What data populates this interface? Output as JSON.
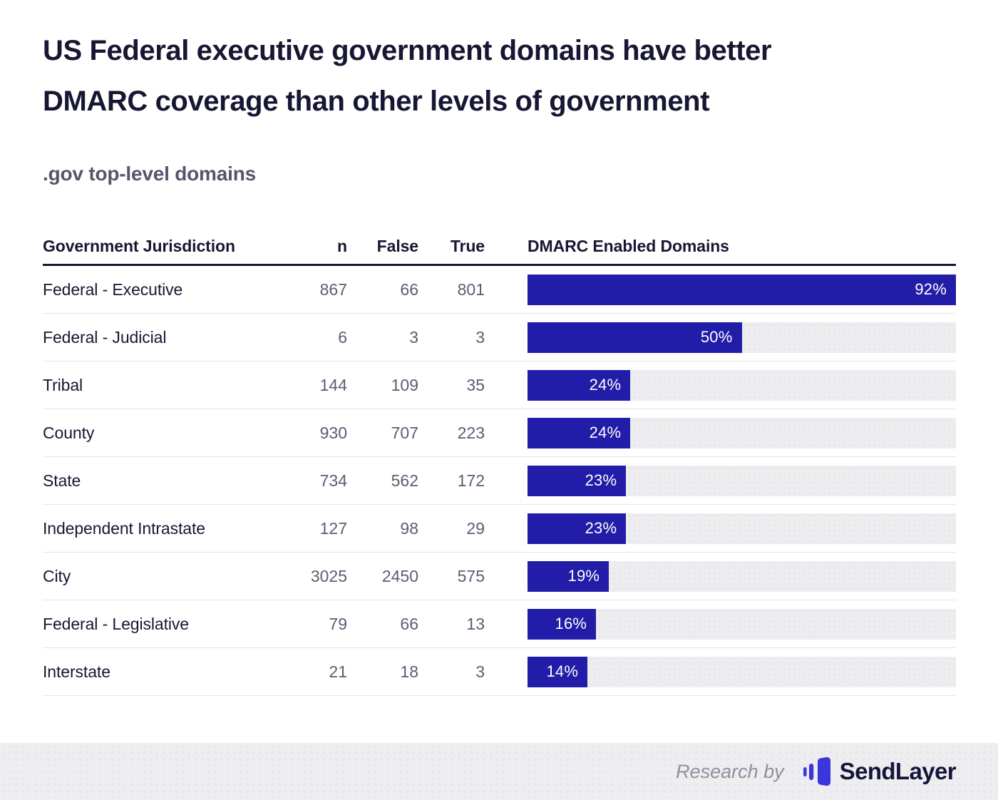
{
  "title_lines": [
    "US Federal executive government domains have better",
    "DMARC coverage than other levels of government"
  ],
  "subtitle": ".gov top-level domains",
  "chart_data": {
    "type": "bar",
    "title": "US Federal executive government domains have better DMARC coverage than other levels of government",
    "subtitle": ".gov top-level domains",
    "columns": [
      "Government Jurisdiction",
      "n",
      "False",
      "True",
      "DMARC Enabled Domains"
    ],
    "xlim": [
      0,
      100
    ],
    "bar_color": "#221da8",
    "track_color": "#ededef",
    "legend": "none",
    "grid": "off",
    "rows": [
      {
        "jurisdiction": "Federal - Executive",
        "n": 867,
        "false_count": 66,
        "true_count": 801,
        "pct": 92,
        "pct_label": "92%",
        "display_width_pct": 100
      },
      {
        "jurisdiction": "Federal - Judicial",
        "n": 6,
        "false_count": 3,
        "true_count": 3,
        "pct": 50,
        "pct_label": "50%",
        "display_width_pct": 50
      },
      {
        "jurisdiction": "Tribal",
        "n": 144,
        "false_count": 109,
        "true_count": 35,
        "pct": 24,
        "pct_label": "24%",
        "display_width_pct": 24
      },
      {
        "jurisdiction": "County",
        "n": 930,
        "false_count": 707,
        "true_count": 223,
        "pct": 24,
        "pct_label": "24%",
        "display_width_pct": 24
      },
      {
        "jurisdiction": "State",
        "n": 734,
        "false_count": 562,
        "true_count": 172,
        "pct": 23,
        "pct_label": "23%",
        "display_width_pct": 23
      },
      {
        "jurisdiction": "Independent Intrastate",
        "n": 127,
        "false_count": 98,
        "true_count": 29,
        "pct": 23,
        "pct_label": "23%",
        "display_width_pct": 23
      },
      {
        "jurisdiction": "City",
        "n": 3025,
        "false_count": 2450,
        "true_count": 575,
        "pct": 19,
        "pct_label": "19%",
        "display_width_pct": 19
      },
      {
        "jurisdiction": "Federal - Legislative",
        "n": 79,
        "false_count": 66,
        "true_count": 13,
        "pct": 16,
        "pct_label": "16%",
        "display_width_pct": 16
      },
      {
        "jurisdiction": "Interstate",
        "n": 21,
        "false_count": 18,
        "true_count": 3,
        "pct": 14,
        "pct_label": "14%",
        "display_width_pct": 14
      }
    ]
  },
  "footer": {
    "research_by": "Research by",
    "brand": "SendLayer"
  },
  "colors": {
    "bar_blue": "#221da8",
    "title": "#171733",
    "muted": "#5c5c75",
    "subtitle": "#55556d",
    "row_border": "#e5e5e9",
    "track": "#ededef",
    "track_dot": "#e1e1e8",
    "footer_bg": "#eeeef0",
    "footer_dot": "#e0e0e8",
    "research": "#8f8f9f",
    "brand": "#15153c",
    "logo_blue": "#3b35dc"
  }
}
